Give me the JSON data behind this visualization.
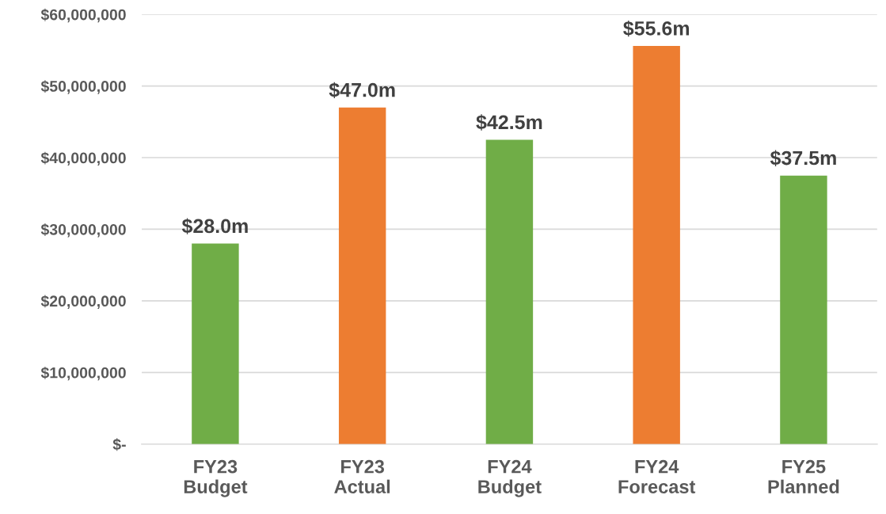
{
  "chart_data": {
    "type": "bar",
    "categories": [
      "FY23\nBudget",
      "FY23\nActual",
      "FY24\nBudget",
      "FY24\nForecast",
      "FY25\nPlanned"
    ],
    "values": [
      28000000,
      47000000,
      42500000,
      55600000,
      37500000
    ],
    "colors": [
      "#70ad47",
      "#ed7d31",
      "#70ad47",
      "#ed7d31",
      "#70ad47"
    ],
    "value_labels": [
      "$28.0m",
      "$47.0m",
      "$42.5m",
      "$55.6m",
      "$37.5m"
    ],
    "ylim": [
      0,
      60000000
    ],
    "yticks": [
      {
        "value": 0,
        "label": "$-"
      },
      {
        "value": 10000000,
        "label": "$10,000,000"
      },
      {
        "value": 20000000,
        "label": "$20,000,000"
      },
      {
        "value": 30000000,
        "label": "$30,000,000"
      },
      {
        "value": 40000000,
        "label": "$40,000,000"
      },
      {
        "value": 50000000,
        "label": "$50,000,000"
      },
      {
        "value": 60000000,
        "label": "$60,000,000"
      }
    ],
    "grid": "y"
  }
}
